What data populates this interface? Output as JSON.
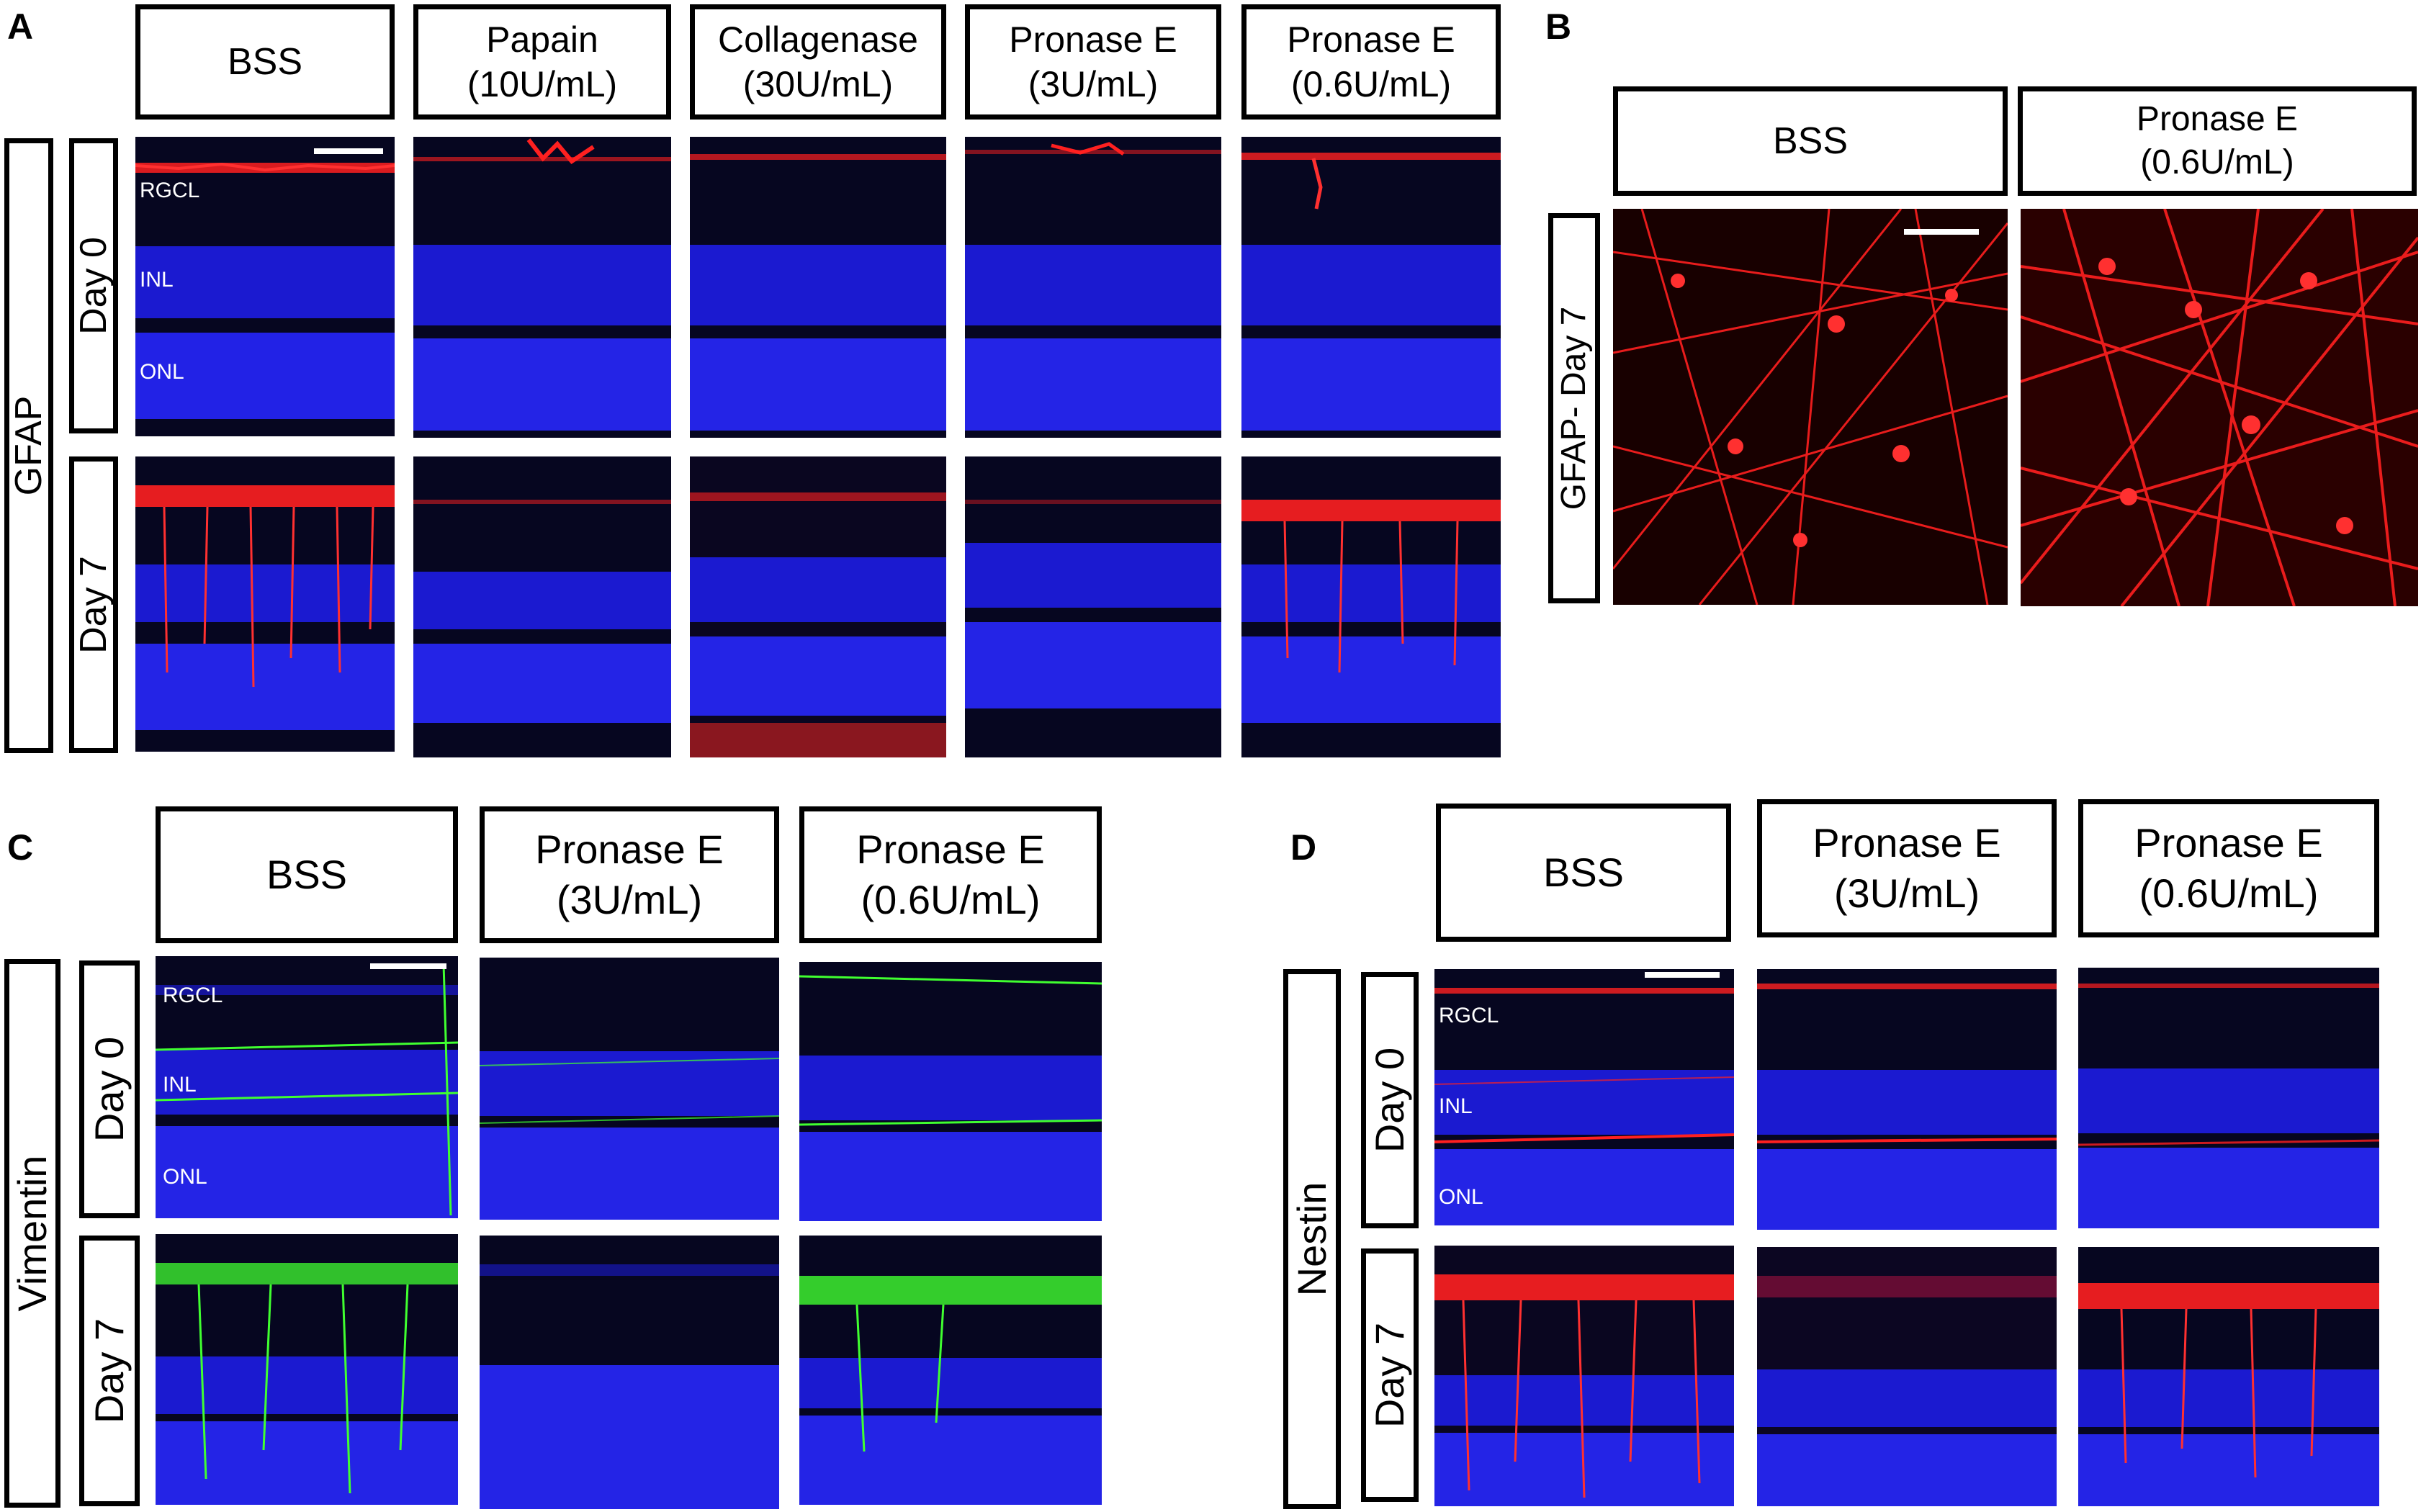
{
  "panels": {
    "A": {
      "label": "A",
      "row_group": "GFAP",
      "rows": [
        "Day 0",
        "Day 7"
      ],
      "columns": [
        "BSS",
        "Papain\n(10U/mL)",
        "Collagenase\n(30U/mL)",
        "Pronase E\n(3U/mL)",
        "Pronase E\n(0.6U/mL)"
      ],
      "layers": [
        "RGCL",
        "INL",
        "ONL"
      ],
      "stain_color": "#ff2020"
    },
    "B": {
      "label": "B",
      "row_group": "GFAP- Day 7",
      "columns": [
        "BSS",
        "Pronase E\n(0.6U/mL)"
      ],
      "stain_color": "#ff2020"
    },
    "C": {
      "label": "C",
      "row_group": "Vimentin",
      "rows": [
        "Day 0",
        "Day 7"
      ],
      "columns": [
        "BSS",
        "Pronase E\n(3U/mL)",
        "Pronase E\n(0.6U/mL)"
      ],
      "layers": [
        "RGCL",
        "INL",
        "ONL"
      ],
      "stain_color": "#40ff30"
    },
    "D": {
      "label": "D",
      "row_group": "Nestin",
      "rows": [
        "Day 0",
        "Day 7"
      ],
      "columns": [
        "BSS",
        "Pronase E\n(3U/mL)",
        "Pronase E\n(0.6U/mL)"
      ],
      "layers": [
        "RGCL",
        "INL",
        "ONL"
      ],
      "stain_color": "#ff2020"
    }
  },
  "nuclear_color": "#1a1ae6"
}
